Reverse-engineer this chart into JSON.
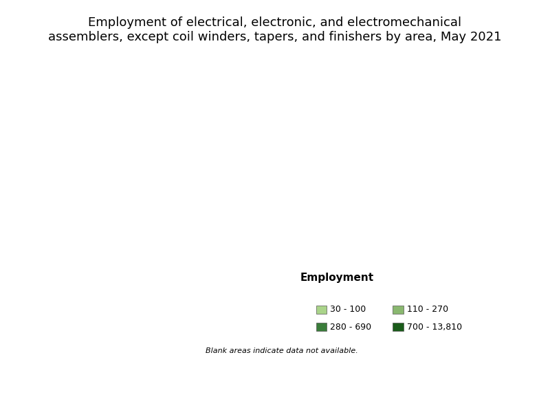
{
  "title_line1": "Employment of electrical, electronic, and electromechanical",
  "title_line2": "assemblers, except coil winders, tapers, and finishers by area, May 2021",
  "legend_title": "Employment",
  "legend_items": [
    {
      "label": "30 - 100",
      "color": "#aad48a"
    },
    {
      "label": "110 - 270",
      "color": "#8ab870"
    },
    {
      "label": "280 - 690",
      "color": "#3a7d3a"
    },
    {
      "label": "700 - 13,810",
      "color": "#1a5c1a"
    }
  ],
  "blank_note": "Blank areas indicate data not available.",
  "background_color": "#ffffff",
  "map_outline_color": "#000000",
  "title_fontsize": 13,
  "legend_title_fontsize": 11,
  "legend_fontsize": 9,
  "note_fontsize": 8
}
